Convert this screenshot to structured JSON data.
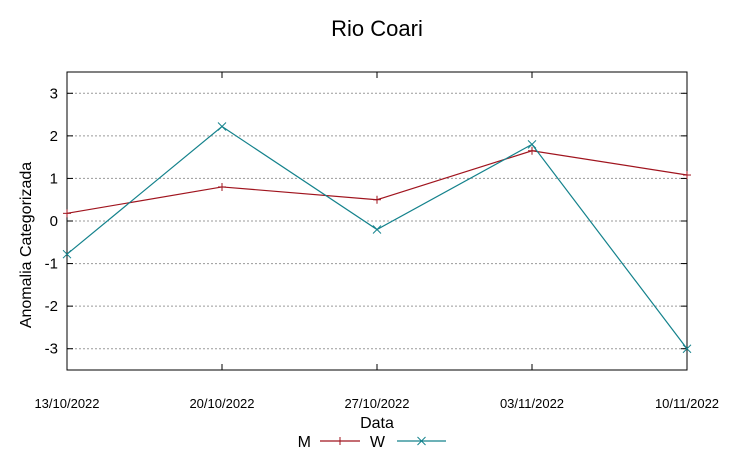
{
  "chart_data": {
    "type": "line",
    "title": "Rio Coari",
    "xlabel": "Data",
    "ylabel": "Anomalia Categorizada",
    "categories": [
      "13/10/2022",
      "20/10/2022",
      "27/10/2022",
      "03/11/2022",
      "10/11/2022"
    ],
    "yticks": [
      "3",
      "2",
      "1",
      "0",
      "-1",
      "-2",
      "-3"
    ],
    "ylim": [
      -3.5,
      3.5
    ],
    "grid": true,
    "legend_position": "bottom",
    "series": [
      {
        "name": "M",
        "color": "#a0141e",
        "marker": "plus",
        "values": [
          0.18,
          0.8,
          0.5,
          1.65,
          1.08
        ]
      },
      {
        "name": "W",
        "color": "#14828c",
        "marker": "cross",
        "values": [
          -0.78,
          2.22,
          -0.2,
          1.8,
          -3.0
        ]
      }
    ]
  }
}
